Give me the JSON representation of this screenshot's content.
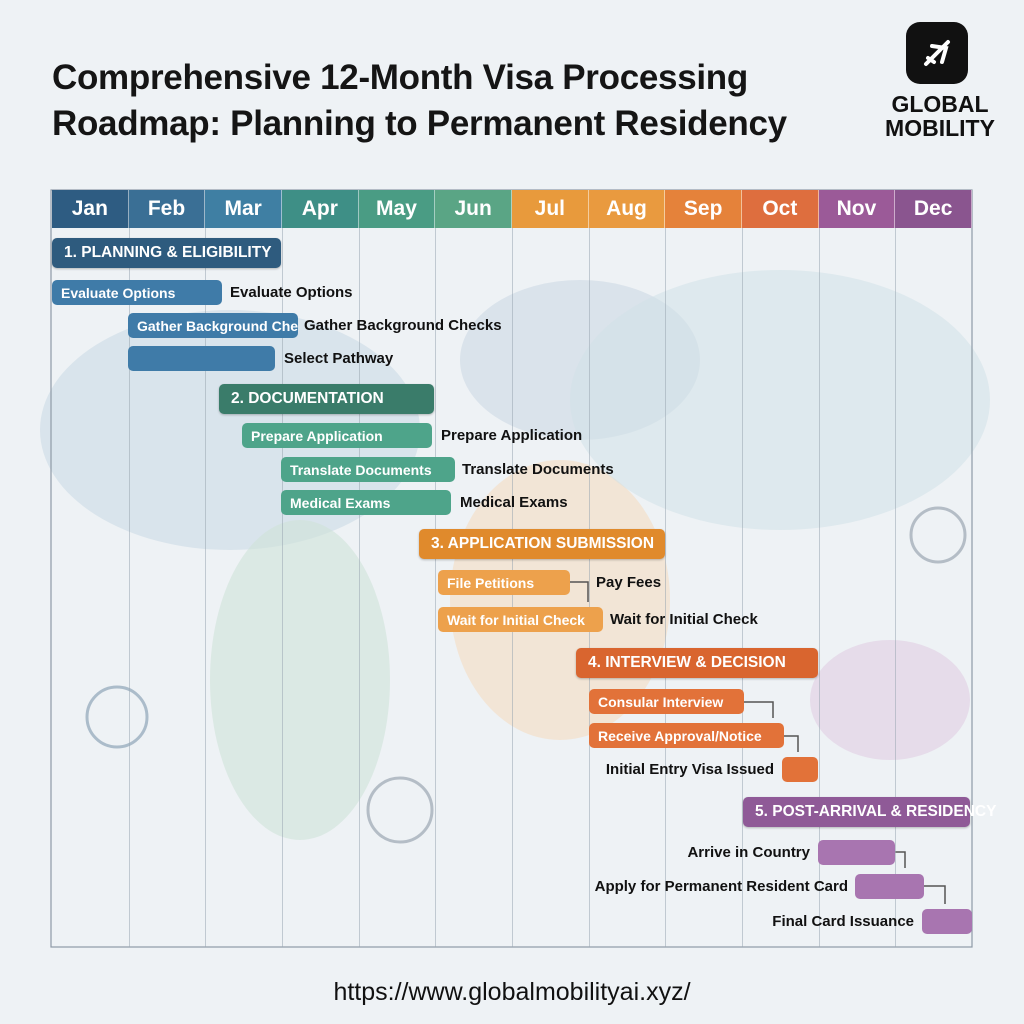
{
  "header": {
    "title": [
      "Comprehensive 12-Month Visa Processing",
      "Roadmap: Planning to Permanent Residency"
    ]
  },
  "logo": {
    "lines": [
      "GLOBAL",
      "MOBILITY"
    ]
  },
  "months": [
    "Jan",
    "Feb",
    "Mar",
    "Apr",
    "May",
    "Jun",
    "Jul",
    "Aug",
    "Sep",
    "Oct",
    "Nov",
    "Dec"
  ],
  "phases": [
    {
      "label": "1. PLANNING & ELIGIBILITY",
      "tasks": [
        {
          "bar_label": "Evaluate Options",
          "label": "Evaluate Options"
        },
        {
          "bar_label": "Gather Background Checks",
          "label": "Gather Background Checks"
        },
        {
          "label": "Select Pathway"
        }
      ]
    },
    {
      "label": "2. DOCUMENTATION",
      "tasks": [
        {
          "bar_label": "Prepare Application",
          "label": "Prepare Application"
        },
        {
          "bar_label": "Translate Documents",
          "label": "Translate Documents"
        },
        {
          "bar_label": "Medical Exams",
          "label": "Medical Exams"
        }
      ]
    },
    {
      "label": "3. APPLICATION SUBMISSION",
      "tasks": [
        {
          "bar_label": "File Petitions",
          "label": "Pay Fees"
        },
        {
          "bar_label": "Wait for Initial Check",
          "label": "Wait for Initial Check"
        }
      ]
    },
    {
      "label": "4. INTERVIEW & DECISION",
      "tasks": [
        {
          "bar_label": "Consular Interview"
        },
        {
          "bar_label": "Receive Approval/Notice"
        },
        {
          "label": "Initial Entry Visa Issued"
        }
      ]
    },
    {
      "label": "5. POST-ARRIVAL & RESIDENCY",
      "tasks": [
        {
          "label": "Arrive in Country"
        },
        {
          "label": "Apply for Permanent Resident Card"
        },
        {
          "label": "Final Card Issuance"
        }
      ]
    }
  ],
  "footer": {
    "url": "https://www.globalmobilityai.xyz/"
  }
}
